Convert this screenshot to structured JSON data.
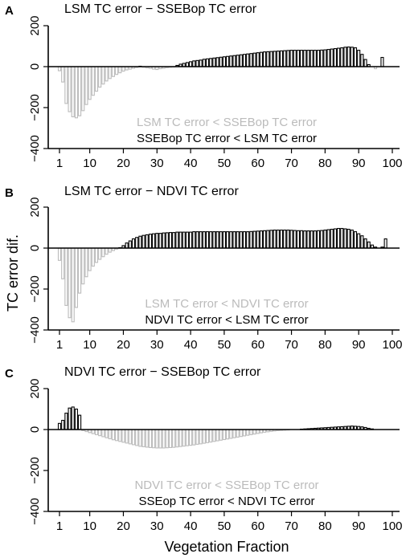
{
  "figure": {
    "ylabel": "TC error dif.",
    "xlabel": "Vegetation Fraction",
    "colors": {
      "positive": "#000000",
      "negative": "#bbbbbb",
      "axis": "#000000",
      "fill": "#ffffff"
    }
  },
  "chart_data": [
    {
      "type": "bar",
      "letter": "A",
      "title": "LSM TC error − SSEBop TC error",
      "annotation_negative": "LSM TC error < SSEBop TC error",
      "annotation_positive": "SSEBop TC error < LSM TC error",
      "ylim": [
        -400,
        200
      ],
      "yticks": [
        -400,
        -200,
        0,
        200
      ],
      "ytick_labels": [
        "−400",
        "−200",
        "0",
        "200"
      ],
      "xticks": [
        1,
        10,
        20,
        30,
        40,
        50,
        60,
        70,
        80,
        90,
        100
      ],
      "xlim": [
        1,
        100
      ],
      "x_start": 1,
      "values": [
        -20,
        -75,
        -180,
        -220,
        -245,
        -250,
        -240,
        -215,
        -185,
        -160,
        -140,
        -120,
        -100,
        -85,
        -70,
        -58,
        -48,
        -38,
        -30,
        -22,
        -16,
        -12,
        -8,
        -4,
        2,
        -3,
        -6,
        -8,
        -12,
        -14,
        -10,
        -8,
        -5,
        -3,
        -2,
        6,
        12,
        16,
        20,
        24,
        28,
        30,
        32,
        36,
        38,
        40,
        42,
        44,
        46,
        48,
        50,
        52,
        54,
        56,
        58,
        60,
        62,
        64,
        66,
        68,
        70,
        72,
        73,
        74,
        75,
        76,
        77,
        78,
        79,
        80,
        80,
        80,
        80,
        80,
        80,
        80,
        80,
        80,
        81,
        82,
        84,
        86,
        88,
        90,
        92,
        95,
        96,
        95,
        92,
        80,
        60,
        35,
        10,
        0,
        -10,
        0,
        45
      ]
    },
    {
      "type": "bar",
      "letter": "B",
      "title": "LSM TC error − NDVI TC error",
      "annotation_negative": "LSM TC error < NDVI TC error",
      "annotation_positive": "NDVI TC error < LSM TC error",
      "ylim": [
        -400,
        200
      ],
      "yticks": [
        -400,
        -200,
        0,
        200
      ],
      "ytick_labels": [
        "−400",
        "−200",
        "0",
        "200"
      ],
      "xticks": [
        1,
        10,
        20,
        30,
        40,
        50,
        60,
        70,
        80,
        90,
        100
      ],
      "xlim": [
        1,
        100
      ],
      "x_start": 1,
      "values": [
        -60,
        -150,
        -280,
        -340,
        -360,
        -290,
        -220,
        -175,
        -140,
        -110,
        -88,
        -70,
        -55,
        -42,
        -30,
        -20,
        -12,
        -5,
        2,
        12,
        25,
        35,
        45,
        52,
        58,
        62,
        65,
        68,
        70,
        72,
        72,
        74,
        75,
        76,
        76,
        78,
        78,
        78,
        78,
        78,
        80,
        80,
        80,
        80,
        80,
        80,
        80,
        80,
        80,
        80,
        80,
        80,
        80,
        80,
        80,
        80,
        80,
        81,
        82,
        83,
        84,
        85,
        86,
        87,
        88,
        88,
        88,
        88,
        88,
        87,
        86,
        85,
        85,
        84,
        84,
        84,
        84,
        85,
        86,
        88,
        90,
        92,
        94,
        96,
        96,
        94,
        92,
        88,
        80,
        70,
        60,
        45,
        30,
        15,
        5,
        0,
        5,
        45
      ]
    },
    {
      "type": "bar",
      "letter": "C",
      "title": "NDVI TC error − SSEBop TC error",
      "annotation_negative": "NDVI TC error < SSEBop TC error",
      "annotation_positive": "SSEop TC error < NDVI TC error",
      "ylim": [
        -400,
        200
      ],
      "yticks": [
        -400,
        -200,
        0,
        200
      ],
      "ytick_labels": [
        "−400",
        "−200",
        "0",
        "200"
      ],
      "xticks": [
        1,
        10,
        20,
        30,
        40,
        50,
        60,
        70,
        80,
        90,
        100
      ],
      "xlim": [
        1,
        100
      ],
      "x_start": 1,
      "values": [
        30,
        45,
        80,
        105,
        110,
        100,
        70,
        -5,
        -10,
        -15,
        -20,
        -25,
        -30,
        -35,
        -40,
        -45,
        -50,
        -54,
        -58,
        -62,
        -66,
        -70,
        -74,
        -78,
        -82,
        -84,
        -86,
        -88,
        -89,
        -90,
        -90,
        -90,
        -89,
        -88,
        -87,
        -85,
        -83,
        -81,
        -79,
        -77,
        -75,
        -72,
        -70,
        -67,
        -64,
        -61,
        -58,
        -55,
        -52,
        -49,
        -46,
        -43,
        -40,
        -37,
        -34,
        -31,
        -28,
        -25,
        -22,
        -19,
        -16,
        -13,
        -11,
        -9,
        -7,
        -5,
        -4,
        -3,
        -2,
        -1,
        -1,
        1,
        2,
        3,
        4,
        5,
        6,
        7,
        8,
        9,
        10,
        11,
        12,
        13,
        14,
        15,
        16,
        17,
        16,
        15,
        13,
        10,
        6,
        3,
        1,
        0,
        0
      ]
    }
  ]
}
